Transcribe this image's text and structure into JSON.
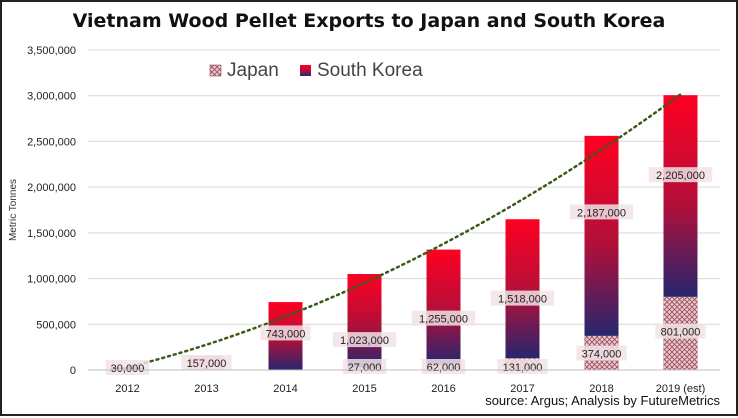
{
  "chart_data": {
    "type": "bar",
    "stacked": true,
    "title": "Vietnam Wood Pellet Exports to Japan and South Korea",
    "ylabel": "Metric Tonnes",
    "xlabel": "",
    "ylim": [
      0,
      3500000
    ],
    "yticks": [
      "0",
      "500,000",
      "1,000,000",
      "1,500,000",
      "2,000,000",
      "2,500,000",
      "3,000,000",
      "3,500,000"
    ],
    "categories": [
      "2012",
      "2013",
      "2014",
      "2015",
      "2016",
      "2017",
      "2018",
      "2019 (est)"
    ],
    "series": [
      {
        "name": "Japan",
        "values": [
          0,
          0,
          0,
          27000,
          62000,
          131000,
          374000,
          801000
        ],
        "labels": [
          "",
          "",
          "",
          "27,000",
          "62,000",
          "131,000",
          "374,000",
          "801,000"
        ],
        "color": "#a0606a"
      },
      {
        "name": "South Korea",
        "values": [
          30000,
          157000,
          743000,
          1023000,
          1255000,
          1518000,
          2187000,
          2205000
        ],
        "labels": [
          "30,000",
          "157,000",
          "743,000",
          "1,023,000",
          "1,255,000",
          "1,518,000",
          "2,187,000",
          "2,205,000"
        ],
        "color": "#e8001c"
      }
    ],
    "trendline": "dotted polynomial",
    "trendline_color": "#3a5a1a",
    "grid": true,
    "legend_position": "top-left"
  },
  "source": "source: Argus; Analysis by FutureMetrics"
}
